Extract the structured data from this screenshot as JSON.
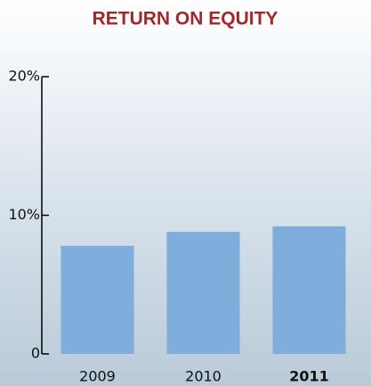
{
  "chart_data": {
    "type": "bar",
    "title": "RETURN ON EQUITY",
    "categories": [
      "2009",
      "2010",
      "2011"
    ],
    "values": [
      7.8,
      8.8,
      9.2
    ],
    "color": "#80aedc",
    "ylim": [
      0,
      20
    ],
    "yticks": [
      0,
      {
        "value": 10,
        "label": "10%"
      },
      {
        "value": 20,
        "label": "20%"
      }
    ],
    "grid": false
  }
}
